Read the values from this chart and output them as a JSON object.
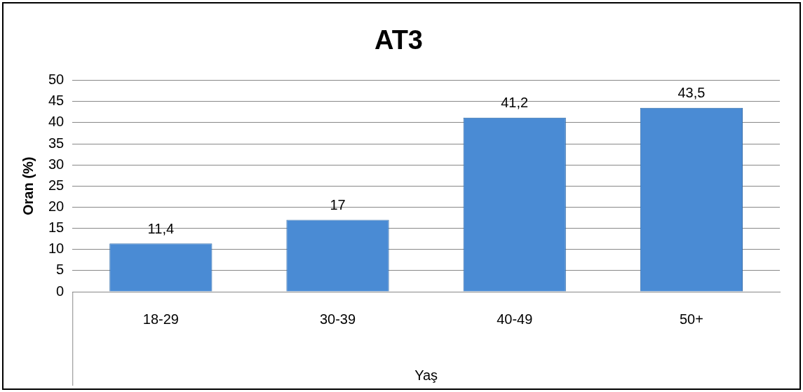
{
  "chart_data": {
    "type": "bar",
    "title": "AT3",
    "xlabel": "Yaş",
    "ylabel": "Oran (%)",
    "categories": [
      "18-29",
      "30-39",
      "40-49",
      "50+"
    ],
    "values": [
      11.4,
      17,
      41.2,
      43.5
    ],
    "value_labels": [
      "11,4",
      "17",
      "41,2",
      "43,5"
    ],
    "color": "#4a8bd4",
    "ylim": [
      0,
      50
    ],
    "yticks": [
      0,
      5,
      10,
      15,
      20,
      25,
      30,
      35,
      40,
      45,
      50
    ],
    "grid": "y",
    "legend": false
  }
}
